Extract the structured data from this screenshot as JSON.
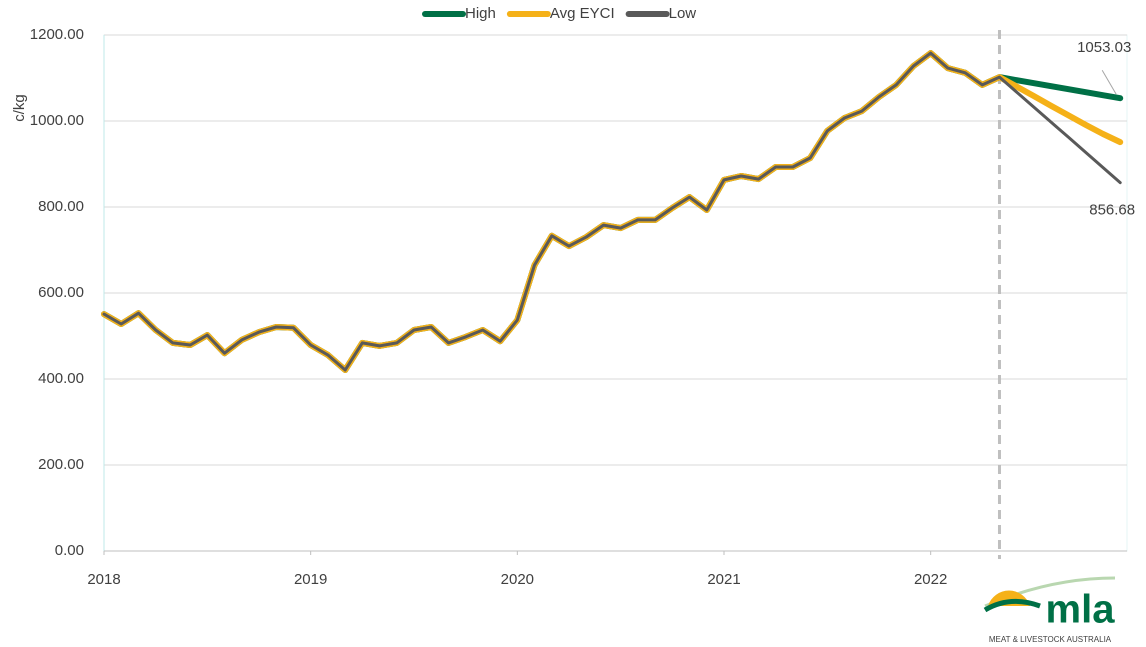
{
  "chart_data": {
    "type": "line",
    "y_label": "c/kg",
    "x": [
      2018,
      2018.083,
      2018.167,
      2018.25,
      2018.333,
      2018.417,
      2018.5,
      2018.583,
      2018.667,
      2018.75,
      2018.833,
      2018.917,
      2019,
      2019.083,
      2019.167,
      2019.25,
      2019.333,
      2019.417,
      2019.5,
      2019.583,
      2019.667,
      2019.75,
      2019.833,
      2019.917,
      2020,
      2020.083,
      2020.167,
      2020.25,
      2020.333,
      2020.417,
      2020.5,
      2020.583,
      2020.667,
      2020.75,
      2020.833,
      2020.917,
      2021,
      2021.083,
      2021.167,
      2021.25,
      2021.333,
      2021.417,
      2021.5,
      2021.583,
      2021.667,
      2021.75,
      2021.833,
      2021.917,
      2022,
      2022.083,
      2022.167,
      2022.25,
      2022.333,
      2022.417,
      2022.5,
      2022.583,
      2022.667,
      2022.75,
      2022.833,
      2022.917
    ],
    "series": [
      {
        "name": "High",
        "color": "#007046",
        "values": [
          551,
          528,
          553,
          514,
          484,
          479,
          502,
          460,
          491,
          509,
          521,
          519,
          479,
          456,
          421,
          484,
          477,
          484,
          514,
          521,
          484,
          498,
          514,
          488,
          537,
          665,
          733,
          709,
          730,
          758,
          751,
          770,
          770,
          798,
          823,
          793,
          863,
          872,
          865,
          893,
          893,
          914,
          977,
          1007,
          1023,
          1056,
          1084,
          1128,
          1158,
          1123,
          1112,
          1084,
          1102,
          1095,
          1088,
          1081,
          1074,
          1067,
          1060,
          1053.03
        ]
      },
      {
        "name": "Avg EYCI",
        "color": "#f5b118",
        "values": [
          551,
          528,
          553,
          514,
          484,
          479,
          502,
          460,
          491,
          509,
          521,
          519,
          479,
          456,
          421,
          484,
          477,
          484,
          514,
          521,
          484,
          498,
          514,
          488,
          537,
          665,
          733,
          709,
          730,
          758,
          751,
          770,
          770,
          798,
          823,
          793,
          863,
          872,
          865,
          893,
          893,
          914,
          977,
          1007,
          1023,
          1056,
          1084,
          1128,
          1158,
          1123,
          1112,
          1084,
          1102,
          1080,
          1058,
          1035,
          1013,
          991,
          970,
          951
        ]
      },
      {
        "name": "Low",
        "color": "#595959",
        "values": [
          551,
          528,
          553,
          514,
          484,
          479,
          502,
          460,
          491,
          509,
          521,
          519,
          479,
          456,
          421,
          484,
          477,
          484,
          514,
          521,
          484,
          498,
          514,
          488,
          537,
          665,
          733,
          709,
          730,
          758,
          751,
          770,
          770,
          798,
          823,
          793,
          863,
          872,
          865,
          893,
          893,
          914,
          977,
          1007,
          1023,
          1056,
          1084,
          1128,
          1158,
          1123,
          1112,
          1084,
          1102,
          1067,
          1032,
          997,
          962,
          927,
          892,
          856.68
        ]
      }
    ],
    "xlim": [
      2018,
      2022.95
    ],
    "xticks": [
      2018,
      2019,
      2020,
      2021,
      2022
    ],
    "ylim": [
      0,
      1200
    ],
    "yticks": [
      {
        "value": 0,
        "label": "0.00"
      },
      {
        "value": 200,
        "label": "200.00"
      },
      {
        "value": 400,
        "label": "400.00"
      },
      {
        "value": 600,
        "label": "600.00"
      },
      {
        "value": 800,
        "label": "800.00"
      },
      {
        "value": 1000,
        "label": "1000.00"
      },
      {
        "value": 1200,
        "label": "1200.00"
      }
    ],
    "grid": true,
    "legend": "top"
  },
  "logo": {
    "name": "mla",
    "tagline": "MEAT & LIVESTOCK AUSTRALIA"
  }
}
